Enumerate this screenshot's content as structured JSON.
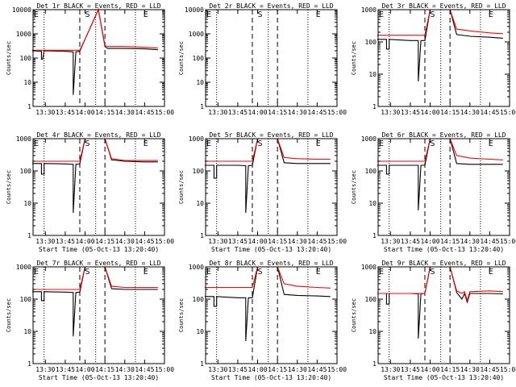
{
  "figure": {
    "background": "#ffffff",
    "axis_color": "#000000",
    "events_color": "#000000",
    "lld_color": "#ff0000"
  },
  "chart_data": [
    {
      "type": "line",
      "title": "Det 1r BLACK = Events, RED = LLD",
      "xlabel": "",
      "ylabel": "Counts/sec",
      "ylim": [
        1,
        10000
      ],
      "yscale": "log",
      "xticks": [
        "13:30",
        "13:45",
        "14:00",
        "14:15",
        "14:30",
        "14:45",
        "15:00"
      ],
      "ytick_labels": [
        "1",
        "10",
        "100",
        "1000",
        "10000"
      ],
      "annotations": [
        {
          "text": "E",
          "x": "13:20"
        },
        {
          "text": "S",
          "x": "14:00"
        },
        {
          "text": "E",
          "x": "14:44"
        }
      ],
      "dotted_lines": [
        "13:29",
        "14:08",
        "14:38"
      ],
      "dashed_lines": [
        "13:56",
        "14:15"
      ],
      "series": [
        {
          "name": "BLACK = Events",
          "x": [
            "13:20",
            "13:27",
            "13:27",
            "13:28",
            "13:29",
            "13:45",
            "13:51",
            "13:51",
            "13:53",
            "13:56",
            "14:00",
            "14:10",
            "14:15",
            "14:17",
            "14:30",
            "14:45",
            "14:55"
          ],
          "values": [
            200,
            190,
            90,
            90,
            200,
            190,
            180,
            3,
            180,
            190,
            600,
            10000,
            300,
            250,
            250,
            240,
            220
          ]
        },
        {
          "name": "RED = LLD",
          "x": [
            "13:20",
            "13:45",
            "13:56",
            "14:00",
            "14:10",
            "14:15",
            "14:17",
            "14:30",
            "14:45",
            "14:55"
          ],
          "values": [
            210,
            210,
            210,
            600,
            10000,
            330,
            300,
            300,
            280,
            260
          ]
        }
      ]
    },
    {
      "type": "line",
      "title": "Det 2r BLACK = Events, RED = LLD",
      "xlabel": "",
      "ylabel": "Counts/sec",
      "ylim": [
        1,
        10000
      ],
      "yscale": "log",
      "xticks": [
        "13:30",
        "13:45",
        "14:00",
        "14:15",
        "14:30",
        "14:45",
        "15:00"
      ],
      "ytick_labels": [
        "1",
        "10",
        "100",
        "1000",
        "10000"
      ],
      "annotations": [
        {
          "text": "E",
          "x": "13:20"
        },
        {
          "text": "S",
          "x": "14:00"
        },
        {
          "text": "E",
          "x": "14:44"
        }
      ],
      "dotted_lines": [
        "13:29",
        "14:08",
        "14:38"
      ],
      "dashed_lines": [
        "13:56",
        "14:15"
      ],
      "series": []
    },
    {
      "type": "line",
      "title": "Det 3r BLACK = Events, RED = LLD",
      "xlabel": "",
      "ylabel": "Counts/sec",
      "ylim": [
        1,
        1000
      ],
      "yscale": "log",
      "xticks": [
        "13:30",
        "13:45",
        "14:00",
        "14:15",
        "14:30",
        "14:45",
        "15:00"
      ],
      "ytick_labels": [
        "1",
        "10",
        "100",
        "1000"
      ],
      "annotations": [
        {
          "text": "E",
          "x": "13:20"
        },
        {
          "text": "S",
          "x": "14:00"
        },
        {
          "text": "E",
          "x": "14:44"
        }
      ],
      "dotted_lines": [
        "13:29",
        "14:08",
        "14:38"
      ],
      "dashed_lines": [
        "13:56",
        "14:15"
      ],
      "series": [
        {
          "name": "BLACK = Events",
          "x": [
            "13:20",
            "13:27",
            "13:27",
            "13:29",
            "13:29",
            "13:45",
            "13:51",
            "13:51",
            "13:53",
            "13:56",
            "14:00",
            "14:15",
            "14:20",
            "14:30",
            "14:45",
            "14:55"
          ],
          "values": [
            120,
            120,
            60,
            60,
            120,
            110,
            110,
            6,
            110,
            110,
            1000,
            1000,
            170,
            150,
            140,
            130
          ]
        },
        {
          "name": "RED = LLD",
          "x": [
            "13:20",
            "13:45",
            "13:56",
            "14:00",
            "14:15",
            "14:20",
            "14:30",
            "14:45",
            "14:55"
          ],
          "values": [
            160,
            160,
            160,
            1000,
            1000,
            250,
            220,
            190,
            180
          ]
        }
      ]
    },
    {
      "type": "line",
      "title": "Det 4r BLACK = Events, RED = LLD",
      "xlabel": "Start Time (05-Oct-13 13:20:40)",
      "ylabel": "Counts/sec",
      "ylim": [
        1,
        1000
      ],
      "yscale": "log",
      "xticks": [
        "13:30",
        "13:45",
        "14:00",
        "14:15",
        "14:30",
        "14:45",
        "15:00"
      ],
      "ytick_labels": [
        "1",
        "10",
        "100",
        "1000"
      ],
      "annotations": [
        {
          "text": "E",
          "x": "13:20"
        },
        {
          "text": "S",
          "x": "14:00"
        },
        {
          "text": "E",
          "x": "14:44"
        }
      ],
      "dotted_lines": [
        "13:29",
        "14:08",
        "14:38"
      ],
      "dashed_lines": [
        "13:56",
        "14:15"
      ],
      "series": [
        {
          "name": "BLACK = Events",
          "x": [
            "13:20",
            "13:27",
            "13:27",
            "13:29",
            "13:29",
            "13:45",
            "13:51",
            "13:51",
            "13:53",
            "13:56",
            "14:00",
            "14:15",
            "14:20",
            "14:30",
            "14:45",
            "14:55"
          ],
          "values": [
            170,
            170,
            80,
            80,
            170,
            165,
            160,
            5,
            160,
            165,
            1000,
            1000,
            220,
            200,
            190,
            190
          ]
        },
        {
          "name": "RED = LLD",
          "x": [
            "13:20",
            "13:45",
            "13:56",
            "14:00",
            "14:15",
            "14:20",
            "14:30",
            "14:45",
            "14:55"
          ],
          "values": [
            200,
            200,
            200,
            1000,
            1000,
            240,
            210,
            210,
            210
          ]
        }
      ]
    },
    {
      "type": "line",
      "title": "Det 5r BLACK = Events, RED = LLD",
      "xlabel": "Start Time (05-Oct-13 13:20:40)",
      "ylabel": "Counts/sec",
      "ylim": [
        1,
        1000
      ],
      "yscale": "log",
      "xticks": [
        "13:30",
        "13:45",
        "14:00",
        "14:15",
        "14:30",
        "14:45",
        "15:00"
      ],
      "ytick_labels": [
        "1",
        "10",
        "100",
        "1000"
      ],
      "annotations": [
        {
          "text": "E",
          "x": "13:20"
        },
        {
          "text": "S",
          "x": "14:00"
        },
        {
          "text": "E",
          "x": "14:44"
        }
      ],
      "dotted_lines": [
        "13:29",
        "14:08",
        "14:38"
      ],
      "dashed_lines": [
        "13:56",
        "14:15"
      ],
      "series": [
        {
          "name": "BLACK = Events",
          "x": [
            "13:20",
            "13:27",
            "13:27",
            "13:29",
            "13:29",
            "13:45",
            "13:51",
            "13:51",
            "13:53",
            "13:56",
            "14:00",
            "14:15",
            "14:20",
            "14:30",
            "14:45",
            "14:55"
          ],
          "values": [
            150,
            150,
            60,
            60,
            150,
            150,
            145,
            5,
            145,
            150,
            1000,
            1000,
            180,
            170,
            170,
            170
          ]
        },
        {
          "name": "RED = LLD",
          "x": [
            "13:20",
            "13:45",
            "13:56",
            "14:00",
            "14:15",
            "14:20",
            "14:30",
            "14:45",
            "14:55"
          ],
          "values": [
            200,
            200,
            200,
            1000,
            1000,
            260,
            240,
            230,
            230
          ]
        }
      ]
    },
    {
      "type": "line",
      "title": "Det 6r BLACK = Events, RED = LLD",
      "xlabel": "Start Time (05-Oct-13 13:20:40)",
      "ylabel": "Counts/sec",
      "ylim": [
        1,
        1000
      ],
      "yscale": "log",
      "xticks": [
        "13:30",
        "13:45",
        "14:00",
        "14:15",
        "14:30",
        "14:45",
        "15:00"
      ],
      "ytick_labels": [
        "1",
        "10",
        "100",
        "1000"
      ],
      "annotations": [
        {
          "text": "E",
          "x": "13:20"
        },
        {
          "text": "S",
          "x": "14:00"
        },
        {
          "text": "E",
          "x": "14:44"
        }
      ],
      "dotted_lines": [
        "13:29",
        "14:08",
        "14:38"
      ],
      "dashed_lines": [
        "13:56",
        "14:15"
      ],
      "series": [
        {
          "name": "BLACK = Events",
          "x": [
            "13:20",
            "13:27",
            "13:27",
            "13:29",
            "13:29",
            "13:45",
            "13:51",
            "13:51",
            "13:53",
            "13:56",
            "14:00",
            "14:15",
            "14:20",
            "14:30",
            "14:45",
            "14:55"
          ],
          "values": [
            150,
            150,
            80,
            80,
            150,
            150,
            150,
            6,
            150,
            150,
            1000,
            1000,
            170,
            160,
            160,
            160
          ]
        },
        {
          "name": "RED = LLD",
          "x": [
            "13:20",
            "13:45",
            "13:56",
            "14:00",
            "14:15",
            "14:20",
            "14:30",
            "14:45",
            "14:55"
          ],
          "values": [
            200,
            200,
            200,
            1000,
            1000,
            300,
            250,
            230,
            220
          ]
        }
      ]
    },
    {
      "type": "line",
      "title": "Det 7r BLACK = Events, RED = LLD",
      "xlabel": "Start Time (05-Oct-13 13:20:40)",
      "ylabel": "Counts/sec",
      "ylim": [
        1,
        1000
      ],
      "yscale": "log",
      "xticks": [
        "13:30",
        "13:45",
        "14:00",
        "14:15",
        "14:30",
        "14:45",
        "15:00"
      ],
      "ytick_labels": [
        "1",
        "10",
        "100",
        "1000"
      ],
      "annotations": [
        {
          "text": "E",
          "x": "13:20"
        },
        {
          "text": "S",
          "x": "14:00"
        },
        {
          "text": "E",
          "x": "14:44"
        }
      ],
      "dotted_lines": [
        "13:29",
        "14:08",
        "14:38"
      ],
      "dashed_lines": [
        "13:56",
        "14:15"
      ],
      "series": [
        {
          "name": "BLACK = Events",
          "x": [
            "13:20",
            "13:27",
            "13:27",
            "13:29",
            "13:29",
            "13:45",
            "13:51",
            "13:51",
            "13:53",
            "13:56",
            "14:00",
            "14:15",
            "14:20",
            "14:30",
            "14:45",
            "14:55"
          ],
          "values": [
            170,
            170,
            90,
            90,
            170,
            165,
            160,
            7,
            160,
            165,
            1000,
            1000,
            210,
            200,
            200,
            200
          ]
        },
        {
          "name": "RED = LLD",
          "x": [
            "13:20",
            "13:45",
            "13:56",
            "14:00",
            "14:15",
            "14:20",
            "14:30",
            "14:45",
            "14:55"
          ],
          "values": [
            200,
            200,
            200,
            1000,
            1000,
            250,
            230,
            230,
            230
          ]
        }
      ]
    },
    {
      "type": "line",
      "title": "Det 8r BLACK = Events, RED = LLD",
      "xlabel": "Start Time (05-Oct-13 13:20:40)",
      "ylabel": "Counts/sec",
      "ylim": [
        1,
        1000
      ],
      "yscale": "log",
      "xticks": [
        "13:30",
        "13:45",
        "14:00",
        "14:15",
        "14:30",
        "14:45",
        "15:00"
      ],
      "ytick_labels": [
        "1",
        "10",
        "100",
        "1000"
      ],
      "annotations": [
        {
          "text": "E",
          "x": "13:20"
        },
        {
          "text": "S",
          "x": "14:00"
        },
        {
          "text": "E",
          "x": "14:44"
        }
      ],
      "dotted_lines": [
        "13:29",
        "14:08",
        "14:38"
      ],
      "dashed_lines": [
        "13:56",
        "14:15"
      ],
      "series": [
        {
          "name": "BLACK = Events",
          "x": [
            "13:20",
            "13:27",
            "13:27",
            "13:29",
            "13:29",
            "13:45",
            "13:51",
            "13:51",
            "13:53",
            "13:56",
            "14:00",
            "14:15",
            "14:20",
            "14:30",
            "14:45",
            "14:55"
          ],
          "values": [
            120,
            120,
            60,
            60,
            120,
            110,
            110,
            5,
            110,
            110,
            1000,
            1000,
            140,
            130,
            125,
            120
          ]
        },
        {
          "name": "RED = LLD",
          "x": [
            "13:20",
            "13:45",
            "13:56",
            "14:00",
            "14:15",
            "14:20",
            "14:30",
            "14:45",
            "14:55"
          ],
          "values": [
            230,
            230,
            230,
            1000,
            1000,
            300,
            250,
            230,
            220
          ]
        }
      ]
    },
    {
      "type": "line",
      "title": "Det 9r BLACK = Events, RED = LLD",
      "xlabel": "Start Time (05-Oct-13 13:20:40)",
      "ylabel": "Counts/sec",
      "ylim": [
        1,
        1000
      ],
      "yscale": "log",
      "xticks": [
        "13:30",
        "13:45",
        "14:00",
        "14:15",
        "14:30",
        "14:45",
        "15:00"
      ],
      "ytick_labels": [
        "1",
        "10",
        "100",
        "1000"
      ],
      "annotations": [
        {
          "text": "E",
          "x": "13:20"
        },
        {
          "text": "S",
          "x": "14:00"
        },
        {
          "text": "E",
          "x": "14:44"
        }
      ],
      "dotted_lines": [
        "13:29",
        "14:08",
        "14:38"
      ],
      "dashed_lines": [
        "13:56",
        "14:15"
      ],
      "series": [
        {
          "name": "BLACK = Events",
          "x": [
            "13:20",
            "13:27",
            "13:27",
            "13:29",
            "13:29",
            "13:45",
            "13:51",
            "13:51",
            "13:53",
            "13:56",
            "14:00",
            "14:15",
            "14:20",
            "14:24",
            "14:26",
            "14:28",
            "14:30",
            "14:45",
            "14:55"
          ],
          "values": [
            150,
            150,
            70,
            70,
            150,
            150,
            145,
            6,
            145,
            150,
            1000,
            1000,
            160,
            100,
            150,
            80,
            150,
            150,
            145
          ]
        },
        {
          "name": "RED = LLD",
          "x": [
            "13:20",
            "13:45",
            "13:56",
            "14:00",
            "14:15",
            "14:20",
            "14:24",
            "14:26",
            "14:28",
            "14:30",
            "14:45",
            "14:55"
          ],
          "values": [
            150,
            150,
            150,
            1000,
            1000,
            180,
            150,
            170,
            90,
            170,
            180,
            170
          ]
        }
      ]
    }
  ]
}
